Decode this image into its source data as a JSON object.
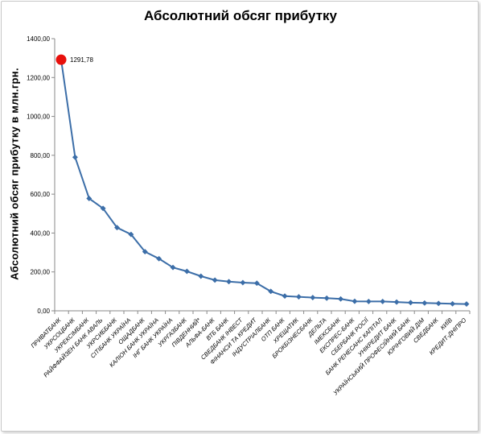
{
  "chart_data": {
    "type": "line",
    "title": "Абсолютний обсяг прибутку",
    "ylabel": "Абсолютний обсяг прибутку в млн.грн.",
    "xlabel": "",
    "ylim": [
      0,
      1400
    ],
    "yticks": [
      "0,00",
      "200,00",
      "400,00",
      "600,00",
      "800,00",
      "1000,00",
      "1200,00",
      "1400,00"
    ],
    "grid": false,
    "legend": "none",
    "categories": [
      "ПРИВАТБАНК",
      "УКРСОЦБАНК",
      "УКРЕКСІМБАНК",
      "РАЙФФАЙЗЕН БАНК АВАЛЬ",
      "УКРСИББАНК",
      "СІТІБАНК УКРАЇНА",
      "ОЩАДБАНК",
      "КАЛІОН БАНК УКРАЇНА",
      "ІНГ БАНК УКРАЇНА",
      "УКРГАЗБАНК",
      "ПІВДЕННИЙ*",
      "АЛЬФА-БАНК",
      "ВТБ БАНК",
      "СВЕДБАНК ІНВЕСТ",
      "ФІНАНСИ ТА КРЕДИТ",
      "ІНДУСТРІАЛБАНК",
      "ОТП БАНК",
      "ХРЕЩАТИК",
      "БРОКБІЗНЕСБАНК",
      "ДЕЛЬТА",
      "ІМЕКСБАНК",
      "ЕКСПРЕС-БАНК",
      "СБЕРБАНК РОСІЇ",
      "БАНК РЕНЕСАНС КАПІТАЛ",
      "УНІКРЕДИТ БАНК",
      "УКРАЇНСЬКИЙ ПРОФЕСІЙНИЙ БАНК",
      "ЮРІНГОВИЙ ДІМ",
      "СВЕДБАНК",
      "КИЇВ",
      "КРЕДИТ-ДНІПРО"
    ],
    "series": [
      {
        "values": [
          1291.78,
          790,
          578,
          527,
          428,
          393,
          304,
          268,
          223,
          203,
          178,
          158,
          150,
          145,
          142,
          100,
          76,
          72,
          68,
          65,
          61,
          49,
          48,
          48,
          45,
          42,
          40,
          38,
          36,
          35
        ],
        "color": "#3c6ea8"
      }
    ],
    "highlight": {
      "index": 0,
      "label": "1291,78",
      "color": "#e8100c"
    }
  }
}
